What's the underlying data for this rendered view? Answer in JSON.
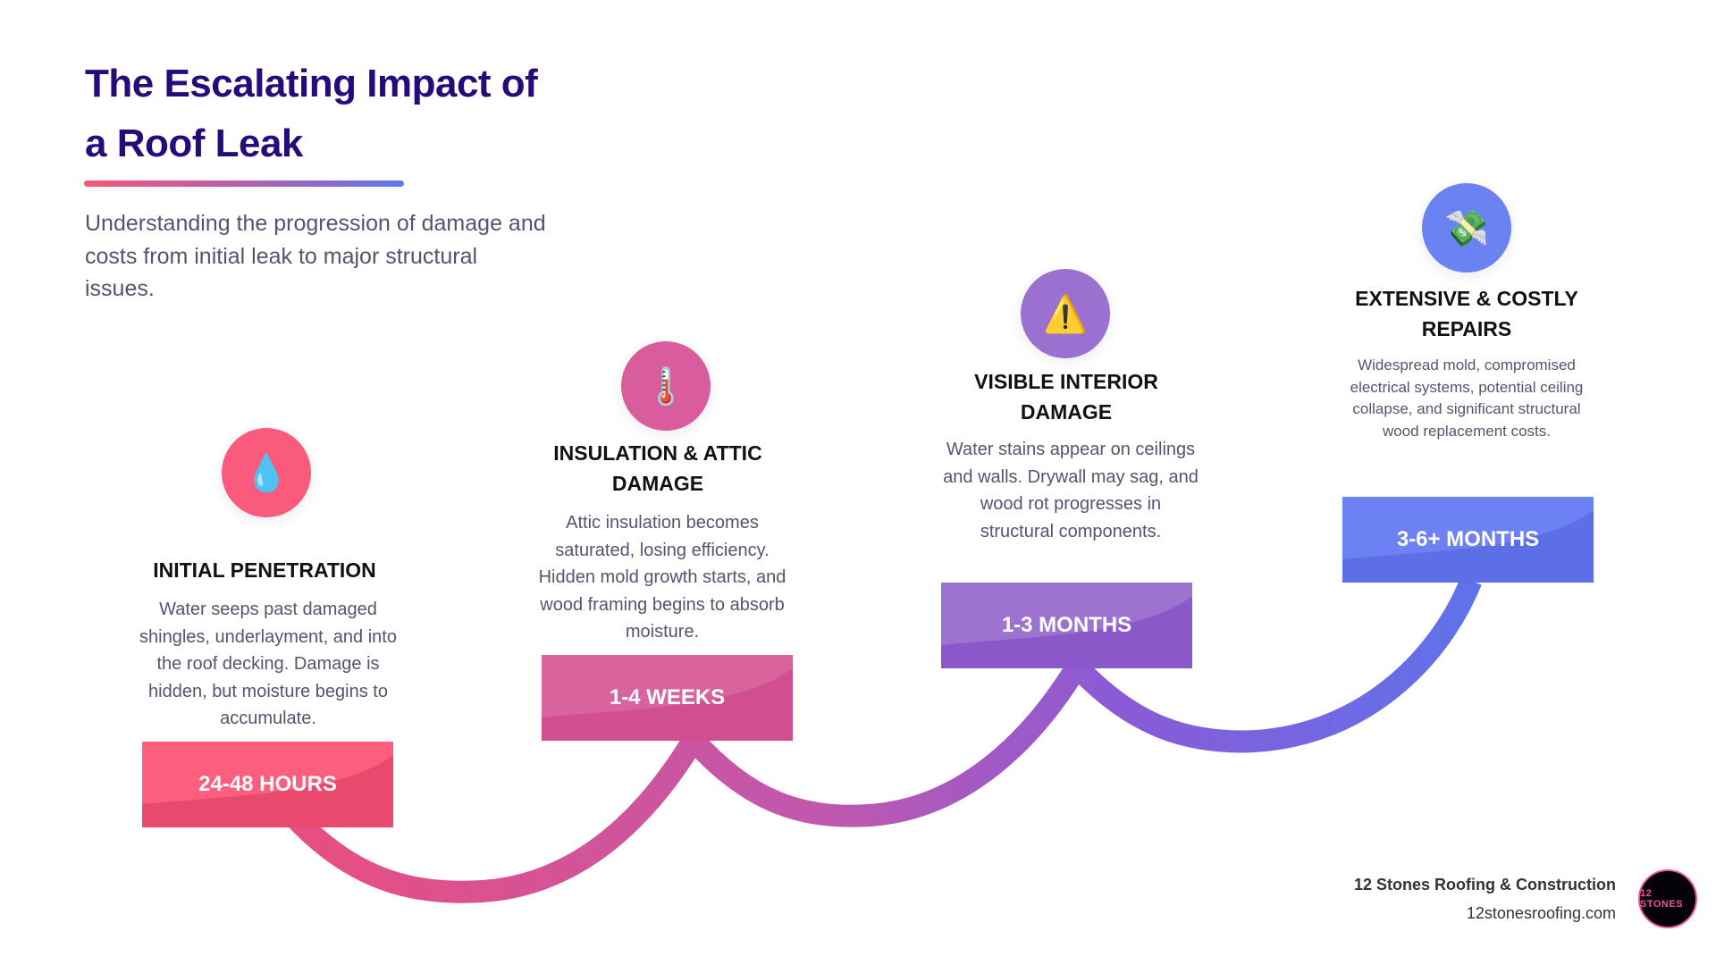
{
  "header": {
    "title_line1": "The Escalating Impact of",
    "title_line2": "a Roof Leak",
    "subtitle": "Understanding the progression of damage and costs from initial leak to major structural issues."
  },
  "steps": [
    {
      "icon": "water-drop-icon",
      "glyph": "💧",
      "heading": "INITIAL PENETRATION",
      "description": "Water seeps past damaged shingles, underlayment, and into the roof decking. Damage is hidden, but moisture begins to accumulate.",
      "timeframe": "24-48 HOURS",
      "color": "#f5577a"
    },
    {
      "icon": "thermometer-icon",
      "glyph": "🌡️",
      "heading": "INSULATION & ATTIC DAMAGE",
      "description": "Attic insulation becomes saturated, losing efficiency. Hidden mold growth starts, and wood framing begins to absorb moisture.",
      "timeframe": "1-4 WEEKS",
      "color": "#d6569a"
    },
    {
      "icon": "warning-icon",
      "glyph": "⚠️",
      "heading": "VISIBLE INTERIOR DAMAGE",
      "description": "Water stains appear on ceilings and walls. Drywall may sag, and wood rot progresses in structural components.",
      "timeframe": "1-3 MONTHS",
      "color": "#9b6fd0"
    },
    {
      "icon": "money-with-wings-icon",
      "glyph": "💸",
      "heading": "EXTENSIVE & COSTLY REPAIRS",
      "description": "Widespread mold, compromised electrical systems, potential ceiling collapse, and significant structural wood replacement costs.",
      "timeframe": "3-6+ MONTHS",
      "color": "#6a7ff0"
    }
  ],
  "footer": {
    "company": "12 Stones Roofing & Construction",
    "website": "12stonesroofing.com",
    "logo_text": "12 STONES"
  },
  "colors": {
    "title": "#250c7a",
    "gradient_start": "#f5577a",
    "gradient_mid": "#b45fae",
    "gradient_end": "#5f79ee"
  }
}
